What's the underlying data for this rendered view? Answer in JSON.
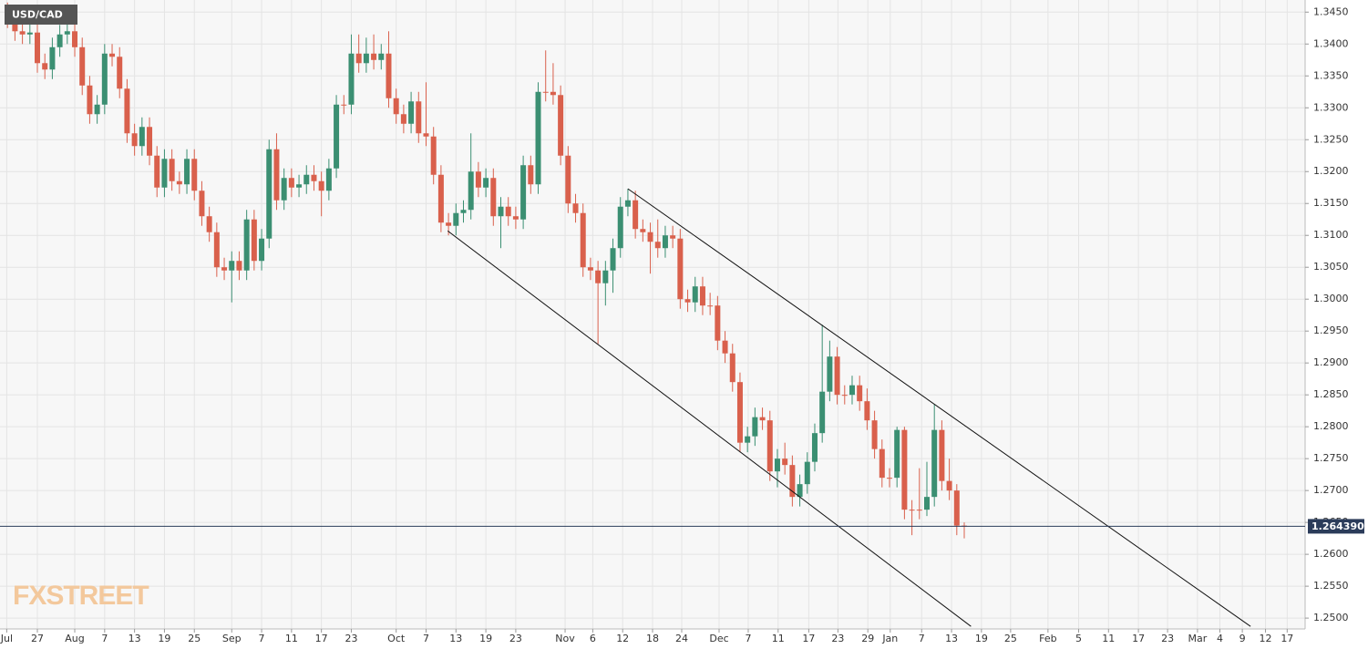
{
  "chart_data": {
    "type": "candlestick",
    "title": "USD/CAD",
    "watermark": "FXSTREET",
    "up_color": "#3b8f72",
    "down_color": "#d9604c",
    "grid": true,
    "xlim": [
      -5,
      169.6
    ],
    "ylim": [
      1.2483,
      1.3469
    ],
    "xticks": [
      {
        "value": -4.1,
        "label": "Jul"
      },
      {
        "value": 0,
        "label": "27"
      },
      {
        "value": 5,
        "label": "Aug"
      },
      {
        "value": 9,
        "label": "7"
      },
      {
        "value": 13,
        "label": "13"
      },
      {
        "value": 17,
        "label": "19"
      },
      {
        "value": 21,
        "label": "25"
      },
      {
        "value": 26,
        "label": "Sep"
      },
      {
        "value": 30,
        "label": "7"
      },
      {
        "value": 34,
        "label": "11"
      },
      {
        "value": 38,
        "label": "17"
      },
      {
        "value": 42,
        "label": "23"
      },
      {
        "value": 48,
        "label": "Oct"
      },
      {
        "value": 52,
        "label": "7"
      },
      {
        "value": 56,
        "label": "13"
      },
      {
        "value": 60,
        "label": "19"
      },
      {
        "value": 64,
        "label": "23"
      },
      {
        "value": 70.6,
        "label": "Nov"
      },
      {
        "value": 74.3,
        "label": "6"
      },
      {
        "value": 78.3,
        "label": "12"
      },
      {
        "value": 82.3,
        "label": "18"
      },
      {
        "value": 86.2,
        "label": "24"
      },
      {
        "value": 91.2,
        "label": "Dec"
      },
      {
        "value": 95.1,
        "label": "7"
      },
      {
        "value": 99.1,
        "label": "11"
      },
      {
        "value": 103.2,
        "label": "17"
      },
      {
        "value": 107.1,
        "label": "23"
      },
      {
        "value": 111.1,
        "label": "29"
      },
      {
        "value": 114.1,
        "label": "Jan"
      },
      {
        "value": 118.3,
        "label": "7"
      },
      {
        "value": 122.3,
        "label": "13"
      },
      {
        "value": 126.3,
        "label": "19"
      },
      {
        "value": 130.2,
        "label": "25"
      },
      {
        "value": 135.2,
        "label": "Feb"
      },
      {
        "value": 139.3,
        "label": "5"
      },
      {
        "value": 143.3,
        "label": "11"
      },
      {
        "value": 147.3,
        "label": "17"
      },
      {
        "value": 151.2,
        "label": "23"
      },
      {
        "value": 155.2,
        "label": "Mar"
      },
      {
        "value": 158.2,
        "label": "4"
      },
      {
        "value": 161.2,
        "label": "9"
      },
      {
        "value": 164.3,
        "label": "12"
      },
      {
        "value": 167.2,
        "label": "17"
      }
    ],
    "yticks": [
      {
        "value": 1.25,
        "label": "1.2500"
      },
      {
        "value": 1.255,
        "label": "1.2550"
      },
      {
        "value": 1.26,
        "label": "1.2600"
      },
      {
        "value": 1.265,
        "label": "1.2650"
      },
      {
        "value": 1.27,
        "label": "1.2700"
      },
      {
        "value": 1.275,
        "label": "1.2750"
      },
      {
        "value": 1.28,
        "label": "1.2800"
      },
      {
        "value": 1.285,
        "label": "1.2850"
      },
      {
        "value": 1.29,
        "label": "1.2900"
      },
      {
        "value": 1.295,
        "label": "1.2950"
      },
      {
        "value": 1.3,
        "label": "1.3000"
      },
      {
        "value": 1.305,
        "label": "1.3050"
      },
      {
        "value": 1.31,
        "label": "1.3100"
      },
      {
        "value": 1.315,
        "label": "1.3150"
      },
      {
        "value": 1.32,
        "label": "1.3200"
      },
      {
        "value": 1.325,
        "label": "1.3250"
      },
      {
        "value": 1.33,
        "label": "1.3300"
      },
      {
        "value": 1.335,
        "label": "1.3350"
      },
      {
        "value": 1.34,
        "label": "1.3400"
      },
      {
        "value": 1.345,
        "label": "1.3450"
      }
    ],
    "last_price": {
      "value": 1.26439,
      "label": "1.264390"
    },
    "trendlines": [
      {
        "x": [
          79,
          162.3
        ],
        "y": [
          1.3173,
          1.2487
        ]
      },
      {
        "x": [
          54.9,
          124.9
        ],
        "y": [
          1.3107,
          1.2487
        ]
      }
    ],
    "x": [
      -4,
      -3,
      -2,
      -1,
      0,
      1,
      2,
      3,
      4,
      5,
      6,
      7,
      8,
      9,
      10,
      11,
      12,
      13,
      14,
      15,
      16,
      17,
      18,
      19,
      20,
      21,
      22,
      23,
      24,
      25,
      26,
      27,
      28,
      29,
      30,
      31,
      32,
      33,
      34,
      35,
      36,
      37,
      38,
      39,
      40,
      41,
      42,
      43,
      44,
      45,
      46,
      47,
      48,
      49,
      50,
      51,
      52,
      53,
      54,
      55,
      56,
      57,
      58,
      59,
      60,
      61,
      62,
      63,
      64,
      65,
      66,
      67,
      68,
      69,
      70,
      71,
      72,
      73,
      74,
      75,
      76,
      77,
      78,
      79,
      80,
      81,
      82,
      83,
      84,
      85,
      86,
      87,
      88,
      89,
      90,
      91,
      92,
      93,
      94,
      95,
      96,
      97,
      98,
      99,
      100,
      101,
      102,
      103,
      104,
      105,
      106,
      107,
      108,
      109,
      110,
      111,
      112,
      113,
      114,
      115,
      116,
      117,
      118,
      119,
      120,
      121,
      122,
      123,
      124
    ],
    "open": [
      1.345,
      1.344,
      1.342,
      1.3415,
      1.3418,
      1.337,
      1.336,
      1.3395,
      1.3415,
      1.342,
      1.3395,
      1.3335,
      1.329,
      1.3305,
      1.3385,
      1.338,
      1.333,
      1.326,
      1.324,
      1.327,
      1.3225,
      1.3175,
      1.322,
      1.3185,
      1.318,
      1.322,
      1.317,
      1.313,
      1.3105,
      1.305,
      1.3045,
      1.306,
      1.3045,
      1.3125,
      1.306,
      1.3095,
      1.3235,
      1.3155,
      1.319,
      1.3175,
      1.318,
      1.3195,
      1.3185,
      1.317,
      1.3205,
      1.3305,
      1.3305,
      1.3385,
      1.337,
      1.3385,
      1.3375,
      1.3385,
      1.3315,
      1.329,
      1.3275,
      1.331,
      1.326,
      1.3255,
      1.3195,
      1.312,
      1.3115,
      1.3135,
      1.314,
      1.32,
      1.3175,
      1.319,
      1.313,
      1.3145,
      1.313,
      1.3125,
      1.321,
      1.318,
      1.3325,
      1.3325,
      1.332,
      1.3225,
      1.315,
      1.3135,
      1.305,
      1.3045,
      1.3025,
      1.3045,
      1.308,
      1.3145,
      1.3155,
      1.311,
      1.3105,
      1.309,
      1.308,
      1.31,
      1.3095,
      1.3,
      1.2995,
      1.302,
      1.299,
      1.299,
      1.2935,
      1.2915,
      1.287,
      1.2775,
      1.2785,
      1.2815,
      1.281,
      1.273,
      1.275,
      1.274,
      1.269,
      1.271,
      1.2745,
      1.279,
      1.2855,
      1.291,
      1.285,
      1.285,
      1.2865,
      1.284,
      1.281,
      1.2765,
      1.272,
      1.272,
      1.2795,
      1.267,
      1.267,
      1.267,
      1.269,
      1.2795,
      1.2715,
      1.27,
      1.2645
    ],
    "high": [
      1.3465,
      1.3455,
      1.3435,
      1.3433,
      1.3433,
      1.3385,
      1.341,
      1.343,
      1.3435,
      1.3435,
      1.341,
      1.335,
      1.332,
      1.34,
      1.34,
      1.3395,
      1.3345,
      1.3275,
      1.3285,
      1.3285,
      1.324,
      1.3235,
      1.3235,
      1.32,
      1.3235,
      1.3235,
      1.3185,
      1.3145,
      1.312,
      1.3065,
      1.3075,
      1.3075,
      1.314,
      1.314,
      1.311,
      1.325,
      1.326,
      1.3205,
      1.3205,
      1.3195,
      1.321,
      1.321,
      1.32,
      1.322,
      1.332,
      1.332,
      1.3415,
      1.3415,
      1.341,
      1.3415,
      1.34,
      1.342,
      1.333,
      1.3305,
      1.3325,
      1.3325,
      1.334,
      1.327,
      1.321,
      1.3135,
      1.315,
      1.3155,
      1.326,
      1.3215,
      1.3205,
      1.3205,
      1.316,
      1.316,
      1.3145,
      1.3225,
      1.3225,
      1.334,
      1.339,
      1.337,
      1.3335,
      1.324,
      1.3165,
      1.315,
      1.3065,
      1.306,
      1.306,
      1.3095,
      1.316,
      1.3173,
      1.317,
      1.3125,
      1.312,
      1.3125,
      1.3115,
      1.3115,
      1.311,
      1.3015,
      1.3035,
      1.3035,
      1.301,
      1.3005,
      1.295,
      1.293,
      1.2885,
      1.28,
      1.283,
      1.283,
      1.2825,
      1.2765,
      1.2775,
      1.2755,
      1.2725,
      1.276,
      1.2805,
      1.296,
      1.2935,
      1.2925,
      1.2865,
      1.288,
      1.288,
      1.286,
      1.2825,
      1.278,
      1.2735,
      1.28,
      1.28,
      1.2685,
      1.2735,
      1.2745,
      1.2835,
      1.281,
      1.275,
      1.271,
      1.265
    ],
    "low": [
      1.3425,
      1.3405,
      1.34,
      1.34,
      1.3355,
      1.3345,
      1.3345,
      1.338,
      1.34,
      1.338,
      1.332,
      1.3275,
      1.3275,
      1.329,
      1.3365,
      1.3315,
      1.3245,
      1.3225,
      1.3225,
      1.321,
      1.316,
      1.316,
      1.317,
      1.3165,
      1.3165,
      1.3155,
      1.3115,
      1.309,
      1.3035,
      1.303,
      1.2995,
      1.303,
      1.303,
      1.3045,
      1.3045,
      1.308,
      1.314,
      1.314,
      1.316,
      1.316,
      1.3165,
      1.317,
      1.313,
      1.3155,
      1.319,
      1.329,
      1.329,
      1.3355,
      1.3355,
      1.336,
      1.336,
      1.33,
      1.3275,
      1.326,
      1.326,
      1.3245,
      1.324,
      1.318,
      1.3105,
      1.31,
      1.31,
      1.312,
      1.3125,
      1.316,
      1.316,
      1.3115,
      1.308,
      1.3115,
      1.311,
      1.311,
      1.3165,
      1.3165,
      1.331,
      1.3305,
      1.321,
      1.3135,
      1.312,
      1.3035,
      1.303,
      1.293,
      1.299,
      1.301,
      1.3065,
      1.313,
      1.3095,
      1.309,
      1.304,
      1.3065,
      1.3065,
      1.308,
      1.2985,
      1.298,
      1.298,
      1.2975,
      1.2975,
      1.292,
      1.29,
      1.2855,
      1.276,
      1.276,
      1.277,
      1.2795,
      1.2715,
      1.2705,
      1.2725,
      1.2675,
      1.2675,
      1.2695,
      1.273,
      1.2775,
      1.284,
      1.2835,
      1.2835,
      1.2835,
      1.2825,
      1.2795,
      1.275,
      1.2705,
      1.2705,
      1.2705,
      1.2655,
      1.263,
      1.2655,
      1.266,
      1.2675,
      1.27,
      1.2685,
      1.263,
      1.2625
    ],
    "close": [
      1.344,
      1.342,
      1.3415,
      1.3418,
      1.337,
      1.336,
      1.3395,
      1.3415,
      1.342,
      1.3395,
      1.3335,
      1.329,
      1.3305,
      1.3385,
      1.338,
      1.333,
      1.326,
      1.324,
      1.327,
      1.3225,
      1.3175,
      1.322,
      1.3185,
      1.318,
      1.322,
      1.317,
      1.313,
      1.3105,
      1.305,
      1.3045,
      1.306,
      1.3045,
      1.3125,
      1.306,
      1.3095,
      1.3235,
      1.3155,
      1.319,
      1.3175,
      1.318,
      1.3195,
      1.3185,
      1.317,
      1.3205,
      1.3305,
      1.3305,
      1.3385,
      1.337,
      1.3385,
      1.3375,
      1.3385,
      1.3315,
      1.329,
      1.3275,
      1.331,
      1.326,
      1.3255,
      1.3195,
      1.312,
      1.3115,
      1.3135,
      1.314,
      1.32,
      1.3175,
      1.319,
      1.313,
      1.3145,
      1.313,
      1.3125,
      1.321,
      1.318,
      1.3325,
      1.3325,
      1.332,
      1.3225,
      1.315,
      1.3135,
      1.305,
      1.3045,
      1.3025,
      1.3045,
      1.308,
      1.3145,
      1.3155,
      1.311,
      1.3105,
      1.309,
      1.308,
      1.31,
      1.3095,
      1.3,
      1.2995,
      1.302,
      1.299,
      1.299,
      1.2935,
      1.2915,
      1.287,
      1.2775,
      1.2785,
      1.2815,
      1.281,
      1.273,
      1.275,
      1.274,
      1.269,
      1.271,
      1.2745,
      1.279,
      1.2855,
      1.291,
      1.285,
      1.285,
      1.2865,
      1.284,
      1.281,
      1.2765,
      1.272,
      1.272,
      1.2795,
      1.267,
      1.267,
      1.267,
      1.269,
      1.2795,
      1.2715,
      1.27,
      1.2645,
      1.26439
    ]
  }
}
